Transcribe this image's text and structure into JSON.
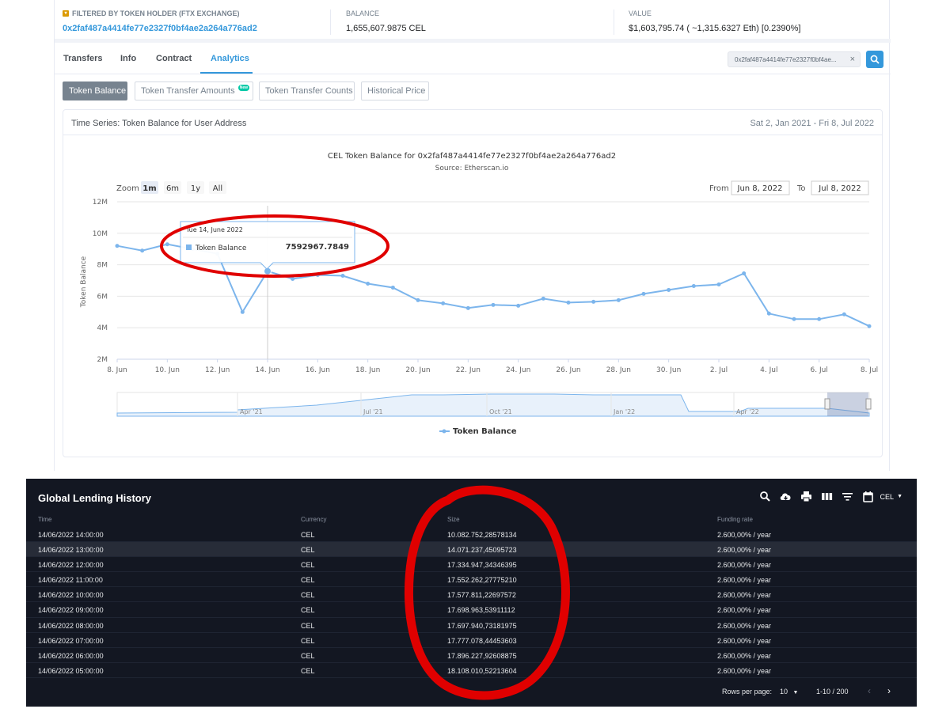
{
  "summary": {
    "holder_label": "FILTERED BY TOKEN HOLDER (FTX Exchange)",
    "holder_address": "0x2faf487a4414fe77e2327f0bf4ae2a264a776ad2",
    "balance_label": "BALANCE",
    "balance_value": "1,655,607.9875 CEL",
    "value_label": "VALUE",
    "value_value": "$1,603,795.74 ( ~1,315.6327 Eth) [0.2390%]"
  },
  "tabs": [
    "Transfers",
    "Info",
    "Contract",
    "Analytics"
  ],
  "search": {
    "value": "0x2faf487a4414fe77e2327f0bf4ae...",
    "clear": "×"
  },
  "subtabs": {
    "balance": "Token Balance",
    "amounts": "Token Transfer Amounts",
    "new_badge": "New",
    "counts": "Token Transfer Counts",
    "price": "Historical Price"
  },
  "card": {
    "title": "Time Series: Token Balance for User Address",
    "range": "Sat 2, Jan 2021 - Fri 8, Jul 2022"
  },
  "chart_data": {
    "type": "line",
    "title": "CEL Token Balance for 0x2faf487a4414fe77e2327f0bf4ae2a264a776ad2",
    "subtitle": "Source: Etherscan.io",
    "ylabel": "Token Balance",
    "ylim": [
      2000000,
      12000000
    ],
    "yticks": [
      "2M",
      "4M",
      "6M",
      "8M",
      "10M",
      "12M"
    ],
    "yticks_values": [
      2000000,
      4000000,
      6000000,
      8000000,
      10000000,
      12000000
    ],
    "xticks": [
      "8. Jun",
      "10. Jun",
      "12. Jun",
      "14. Jun",
      "16. Jun",
      "18. Jun",
      "20. Jun",
      "22. Jun",
      "24. Jun",
      "26. Jun",
      "28. Jun",
      "30. Jun",
      "2. Jul",
      "4. Jul",
      "6. Jul",
      "8. Jul"
    ],
    "zoom": {
      "label": "Zoom",
      "options": [
        "1m",
        "6m",
        "1y",
        "All"
      ],
      "active": "1m"
    },
    "date_range": {
      "from_label": "From",
      "from": "Jun 8, 2022",
      "to_label": "To",
      "to": "Jul 8, 2022"
    },
    "navigator_labels": [
      "Apr '21",
      "Jul '21",
      "Oct '21",
      "Jan '22",
      "Apr '22"
    ],
    "tooltip": {
      "date": "Tue 14, June 2022",
      "series": "Token Balance",
      "value": "7592967.7849"
    },
    "legend": "Token Balance",
    "line_color": "#7cb5ec",
    "series": [
      {
        "name": "Token Balance",
        "x": [
          "2022-06-08",
          "2022-06-09",
          "2022-06-10",
          "2022-06-11",
          "2022-06-12",
          "2022-06-13",
          "2022-06-14",
          "2022-06-15",
          "2022-06-16",
          "2022-06-17",
          "2022-06-18",
          "2022-06-19",
          "2022-06-20",
          "2022-06-21",
          "2022-06-22",
          "2022-06-23",
          "2022-06-24",
          "2022-06-25",
          "2022-06-26",
          "2022-06-27",
          "2022-06-28",
          "2022-06-29",
          "2022-06-30",
          "2022-07-01",
          "2022-07-02",
          "2022-07-03",
          "2022-07-04",
          "2022-07-05",
          "2022-07-06",
          "2022-07-07",
          "2022-07-08"
        ],
        "values": [
          9200000,
          8900000,
          9300000,
          9000000,
          8700000,
          5000000,
          7592967.7849,
          7100000,
          7350000,
          7300000,
          6800000,
          6550000,
          5750000,
          5550000,
          5250000,
          5450000,
          5400000,
          5850000,
          5600000,
          5650000,
          5750000,
          6150000,
          6400000,
          6650000,
          6750000,
          7450000,
          4900000,
          4550000,
          4550000,
          4850000,
          4100000
        ]
      }
    ]
  },
  "lending": {
    "title": "Global Lending History",
    "currency_select": "CEL",
    "headers": {
      "time": "Time",
      "currency": "Currency",
      "size": "Size",
      "rate": "Funding rate"
    },
    "rows": [
      {
        "time": "14/06/2022 14:00:00",
        "currency": "CEL",
        "size": "10.082.752,28578134",
        "rate": "2.600,00% / year"
      },
      {
        "time": "14/06/2022 13:00:00",
        "currency": "CEL",
        "size": "14.071.237,45095723",
        "rate": "2.600,00% / year"
      },
      {
        "time": "14/06/2022 12:00:00",
        "currency": "CEL",
        "size": "17.334.947,34346395",
        "rate": "2.600,00% / year"
      },
      {
        "time": "14/06/2022 11:00:00",
        "currency": "CEL",
        "size": "17.552.262,27775210",
        "rate": "2.600,00% / year"
      },
      {
        "time": "14/06/2022 10:00:00",
        "currency": "CEL",
        "size": "17.577.811,22697572",
        "rate": "2.600,00% / year"
      },
      {
        "time": "14/06/2022 09:00:00",
        "currency": "CEL",
        "size": "17.698.963,53911112",
        "rate": "2.600,00% / year"
      },
      {
        "time": "14/06/2022 08:00:00",
        "currency": "CEL",
        "size": "17.697.940,73181975",
        "rate": "2.600,00% / year"
      },
      {
        "time": "14/06/2022 07:00:00",
        "currency": "CEL",
        "size": "17.777.078,44453603",
        "rate": "2.600,00% / year"
      },
      {
        "time": "14/06/2022 06:00:00",
        "currency": "CEL",
        "size": "17.896.227,92608875",
        "rate": "2.600,00% / year"
      },
      {
        "time": "14/06/2022 05:00:00",
        "currency": "CEL",
        "size": "18.108.010,52213604",
        "rate": "2.600,00% / year"
      }
    ],
    "footer": {
      "rows_label": "Rows per page:",
      "rows_value": "10",
      "range": "1-10 / 200"
    }
  },
  "colors": {
    "accent": "#3498db",
    "annotation": "#ff0000",
    "dark_bg": "#131722"
  }
}
